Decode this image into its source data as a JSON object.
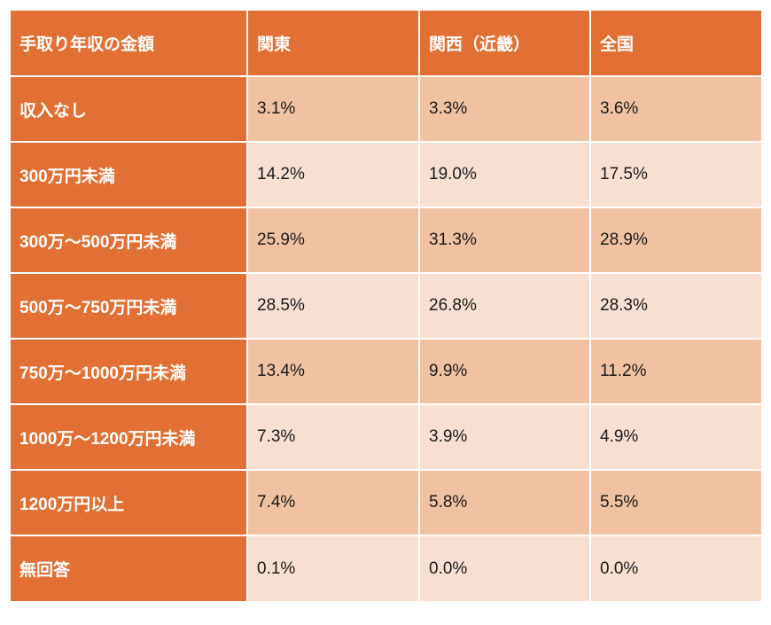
{
  "table": {
    "headers": [
      "手取り年収の金額",
      "関東",
      "関西（近畿）",
      "全国"
    ],
    "rows": [
      {
        "label": "収入なし",
        "values": [
          "3.1%",
          "3.3%",
          "3.6%"
        ]
      },
      {
        "label": "300万円未満",
        "values": [
          "14.2%",
          "19.0%",
          "17.5%"
        ]
      },
      {
        "label": "300万〜500万円未満",
        "values": [
          "25.9%",
          "31.3%",
          "28.9%"
        ]
      },
      {
        "label": "500万〜750万円未満",
        "values": [
          "28.5%",
          "26.8%",
          "28.3%"
        ]
      },
      {
        "label": "750万〜1000万円未満",
        "values": [
          "13.4%",
          "9.9%",
          "11.2%"
        ]
      },
      {
        "label": "1000万〜1200万円未満",
        "values": [
          "7.3%",
          "3.9%",
          "4.9%"
        ]
      },
      {
        "label": "1200万円以上",
        "values": [
          "7.4%",
          "5.8%",
          "5.5%"
        ]
      },
      {
        "label": "無回答",
        "values": [
          "0.1%",
          "0.0%",
          "0.0%"
        ]
      }
    ]
  },
  "colors": {
    "header_bg": "#e27035",
    "label_bg": "#e27035",
    "row_dark": "#f0c2a2",
    "row_light": "#f7e0d2",
    "header_text": "#ffffff",
    "value_text": "#1a1a1a"
  }
}
